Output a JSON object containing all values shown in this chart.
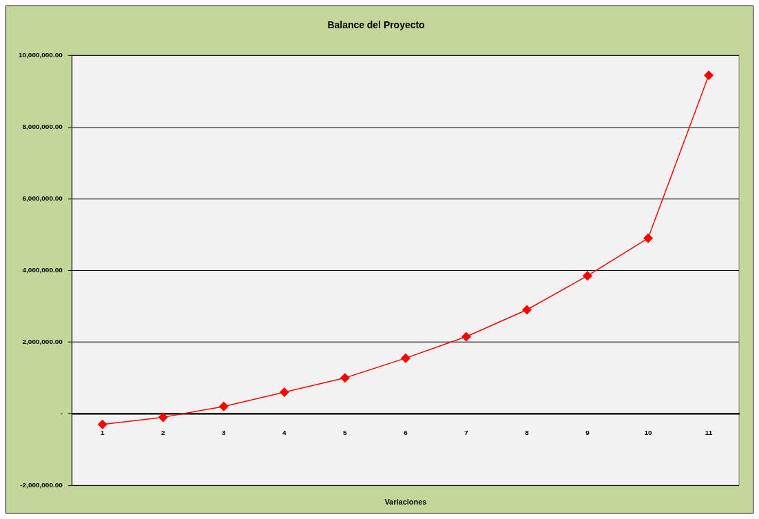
{
  "chart_data": {
    "type": "line",
    "title": "Balance del Proyecto",
    "xlabel": "Variaciones",
    "categories": [
      "1",
      "2",
      "3",
      "4",
      "5",
      "6",
      "7",
      "8",
      "9",
      "10",
      "11"
    ],
    "series": [
      {
        "color": "#ff0000",
        "values": [
          -300000,
          -100000,
          200000,
          600000,
          1000000,
          1550000,
          2150000,
          2900000,
          3850000,
          4900000,
          9450000
        ]
      }
    ],
    "ylim": [
      -2000000,
      10000000
    ],
    "yticks": [
      {
        "value": -2000000,
        "label": "-2,000,000.00"
      },
      {
        "value": 0,
        "label": "-"
      },
      {
        "value": 2000000,
        "label": "2,000,000.00"
      },
      {
        "value": 4000000,
        "label": "4,000,000.00"
      },
      {
        "value": 6000000,
        "label": "6,000,000.00"
      },
      {
        "value": 8000000,
        "label": "8,000,000.00"
      },
      {
        "value": 10000000,
        "label": "10,000,000.00"
      }
    ],
    "grid": "y",
    "marker": "diamond",
    "line_style": "solid"
  }
}
